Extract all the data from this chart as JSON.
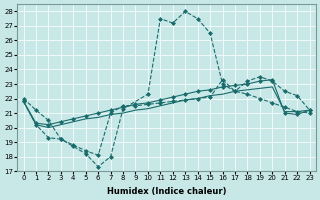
{
  "xlabel": "Humidex (Indice chaleur)",
  "bg_color": "#c8e8e8",
  "line_color": "#1a6b6b",
  "grid_color": "#ffffff",
  "xlim": [
    -0.5,
    23.5
  ],
  "ylim": [
    17,
    28.5
  ],
  "yticks": [
    17,
    18,
    19,
    20,
    21,
    22,
    23,
    24,
    25,
    26,
    27,
    28
  ],
  "xticks": [
    0,
    1,
    2,
    3,
    4,
    5,
    6,
    7,
    8,
    9,
    10,
    11,
    12,
    13,
    14,
    15,
    16,
    17,
    18,
    19,
    20,
    21,
    22,
    23
  ],
  "curve1_x": [
    0,
    1,
    2,
    3,
    4,
    5,
    6,
    7,
    8,
    10,
    11,
    12,
    13,
    14,
    15,
    16,
    17,
    18,
    19,
    20,
    21,
    22,
    23
  ],
  "curve1_y": [
    22.0,
    21.2,
    20.5,
    19.2,
    18.7,
    18.2,
    17.3,
    18.0,
    21.3,
    22.3,
    27.5,
    27.2,
    28.0,
    27.5,
    26.5,
    23.0,
    22.5,
    23.2,
    23.5,
    23.2,
    22.5,
    22.2,
    21.2
  ],
  "curve2_x": [
    0,
    1,
    2,
    3,
    4,
    5,
    6,
    7,
    8,
    9,
    10,
    11,
    12,
    13,
    14,
    15,
    16,
    17,
    18,
    19,
    20,
    21,
    22,
    23
  ],
  "curve2_y": [
    21.8,
    20.3,
    20.2,
    20.4,
    20.6,
    20.8,
    21.0,
    21.2,
    21.4,
    21.6,
    21.7,
    21.9,
    22.1,
    22.3,
    22.5,
    22.6,
    22.8,
    22.9,
    23.0,
    23.2,
    23.3,
    21.0,
    20.9,
    21.2
  ],
  "curve3_x": [
    0,
    1,
    2,
    3,
    4,
    5,
    6,
    7,
    8,
    9,
    10,
    11,
    12,
    13,
    14,
    15,
    16,
    17,
    18,
    19,
    20,
    21,
    22,
    23
  ],
  "curve3_y": [
    21.8,
    20.2,
    20.0,
    20.2,
    20.4,
    20.6,
    20.7,
    20.9,
    21.0,
    21.2,
    21.3,
    21.5,
    21.7,
    21.9,
    22.0,
    22.2,
    22.3,
    22.5,
    22.6,
    22.7,
    22.8,
    21.1,
    21.1,
    21.2
  ],
  "curve4_x": [
    0,
    1,
    2,
    3,
    4,
    5,
    6,
    7,
    8,
    9,
    10,
    11,
    12,
    13,
    14,
    15,
    16,
    17,
    18,
    19,
    20,
    21,
    22,
    23
  ],
  "curve4_y": [
    21.8,
    20.2,
    19.3,
    19.2,
    18.8,
    18.4,
    18.1,
    21.0,
    21.5,
    21.5,
    21.6,
    21.7,
    21.8,
    21.9,
    22.0,
    22.1,
    23.3,
    22.5,
    22.3,
    22.0,
    21.7,
    21.4,
    21.1,
    21.0
  ]
}
